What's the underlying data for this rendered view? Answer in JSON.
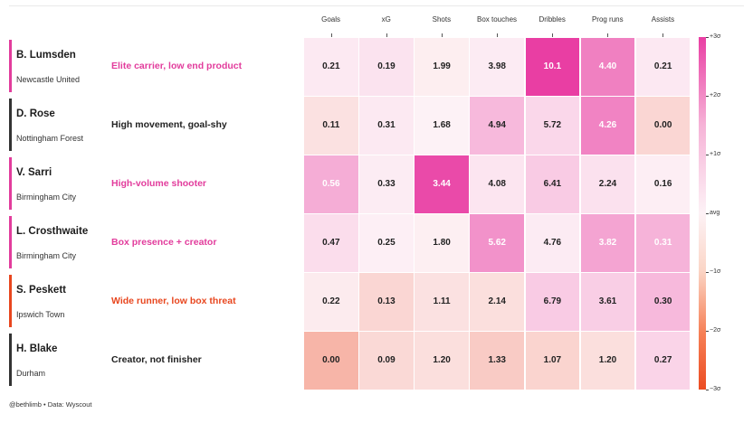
{
  "chart_data": {
    "type": "heatmap",
    "columns": [
      "Goals",
      "xG",
      "Shots",
      "Box touches",
      "Dribbles",
      "Prog runs",
      "Assists"
    ],
    "rows": [
      {
        "name": "B. Lumsden",
        "team": "Newcastle United",
        "description": "Elite carrier, low end product",
        "accent": "#e23c9c",
        "desc_color": "#e23c9c",
        "values": [
          "0.21",
          "0.19",
          "1.99",
          "3.98",
          "10.1",
          "4.40",
          "0.21"
        ],
        "z": [
          0.15,
          0.25,
          -0.08,
          0.12,
          3.0,
          1.9,
          0.16
        ]
      },
      {
        "name": "D. Rose",
        "team": "Nottingham Forest",
        "description": "High movement, goal-shy",
        "accent": "#333333",
        "desc_color": "#222222",
        "values": [
          "0.11",
          "0.31",
          "1.68",
          "4.94",
          "5.72",
          "4.26",
          "0.00"
        ],
        "z": [
          -0.3,
          0.15,
          0.0,
          0.95,
          0.45,
          1.85,
          -0.5
        ]
      },
      {
        "name": "V. Sarri",
        "team": "Birmingham City",
        "description": "High-volume shooter",
        "accent": "#e23c9c",
        "desc_color": "#e23c9c",
        "values": [
          "0.56",
          "0.33",
          "3.44",
          "4.08",
          "6.41",
          "2.24",
          "0.16"
        ],
        "z": [
          1.15,
          0.1,
          2.8,
          0.22,
          0.65,
          0.28,
          0.06
        ]
      },
      {
        "name": "L. Crosthwaite",
        "team": "Birmingham City",
        "description": "Box presence + creator",
        "accent": "#e23c9c",
        "desc_color": "#e23c9c",
        "values": [
          "0.47",
          "0.25",
          "1.80",
          "5.62",
          "4.76",
          "3.82",
          "0.31"
        ],
        "z": [
          0.35,
          0.05,
          -0.05,
          1.6,
          0.12,
          1.3,
          1.05
        ]
      },
      {
        "name": "S. Peskett",
        "team": "Ipswich Town",
        "description": "Wide runner, low box threat",
        "accent": "#e8461e",
        "desc_color": "#e8461e",
        "values": [
          "0.22",
          "0.13",
          "1.11",
          "2.14",
          "6.79",
          "3.61",
          "0.30"
        ],
        "z": [
          -0.12,
          -0.5,
          -0.3,
          -0.35,
          0.65,
          0.6,
          0.95
        ]
      },
      {
        "name": "H. Blake",
        "team": "Durham",
        "description": "Creator, not finisher",
        "accent": "#333333",
        "desc_color": "#222222",
        "values": [
          "0.00",
          "0.09",
          "1.20",
          "1.33",
          "1.07",
          "1.20",
          "0.27"
        ],
        "z": [
          -1.1,
          -0.45,
          -0.35,
          -0.7,
          -0.55,
          -0.35,
          0.5
        ]
      }
    ],
    "colorbar": {
      "labels": [
        "+3σ",
        "+2σ",
        "+1σ",
        "avg",
        "−1σ",
        "−2σ",
        "−3σ"
      ],
      "range": [
        -3,
        3
      ],
      "high_color": "#e93ea3",
      "low_color": "#ec4c22",
      "mid_color": "#fdf2f6"
    },
    "footer": "@bethlimb  •  Data: Wyscout"
  }
}
